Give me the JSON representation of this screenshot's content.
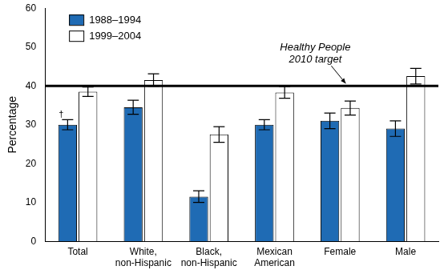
{
  "chart_data": {
    "type": "bar",
    "categories": [
      "Total",
      [
        "White,",
        "non-Hispanic"
      ],
      [
        "Black,",
        "non-Hispanic"
      ],
      [
        "Mexican",
        "American"
      ],
      "Female",
      "Male"
    ],
    "series": [
      {
        "name": "1988–1994",
        "color": "#1f6bb4",
        "values": [
          30,
          34.5,
          11.5,
          30,
          31,
          29
        ],
        "errors": [
          1.3,
          1.8,
          1.5,
          1.3,
          2,
          2
        ]
      },
      {
        "name": "1999–2004",
        "color": "#ffffff",
        "values": [
          38.5,
          41.5,
          27.5,
          38.3,
          34.3,
          42.5
        ],
        "errors": [
          1.2,
          1.6,
          2,
          1.5,
          1.8,
          2
        ]
      }
    ],
    "y_label": "Percentage",
    "ylim": [
      0,
      60
    ],
    "yticks": [
      0,
      10,
      20,
      30,
      40,
      50,
      60
    ],
    "grid": false,
    "legend": "upper left",
    "target": {
      "label": [
        "Healthy People",
        "2010 target"
      ],
      "value": 40
    },
    "footnote_mark": "†"
  }
}
